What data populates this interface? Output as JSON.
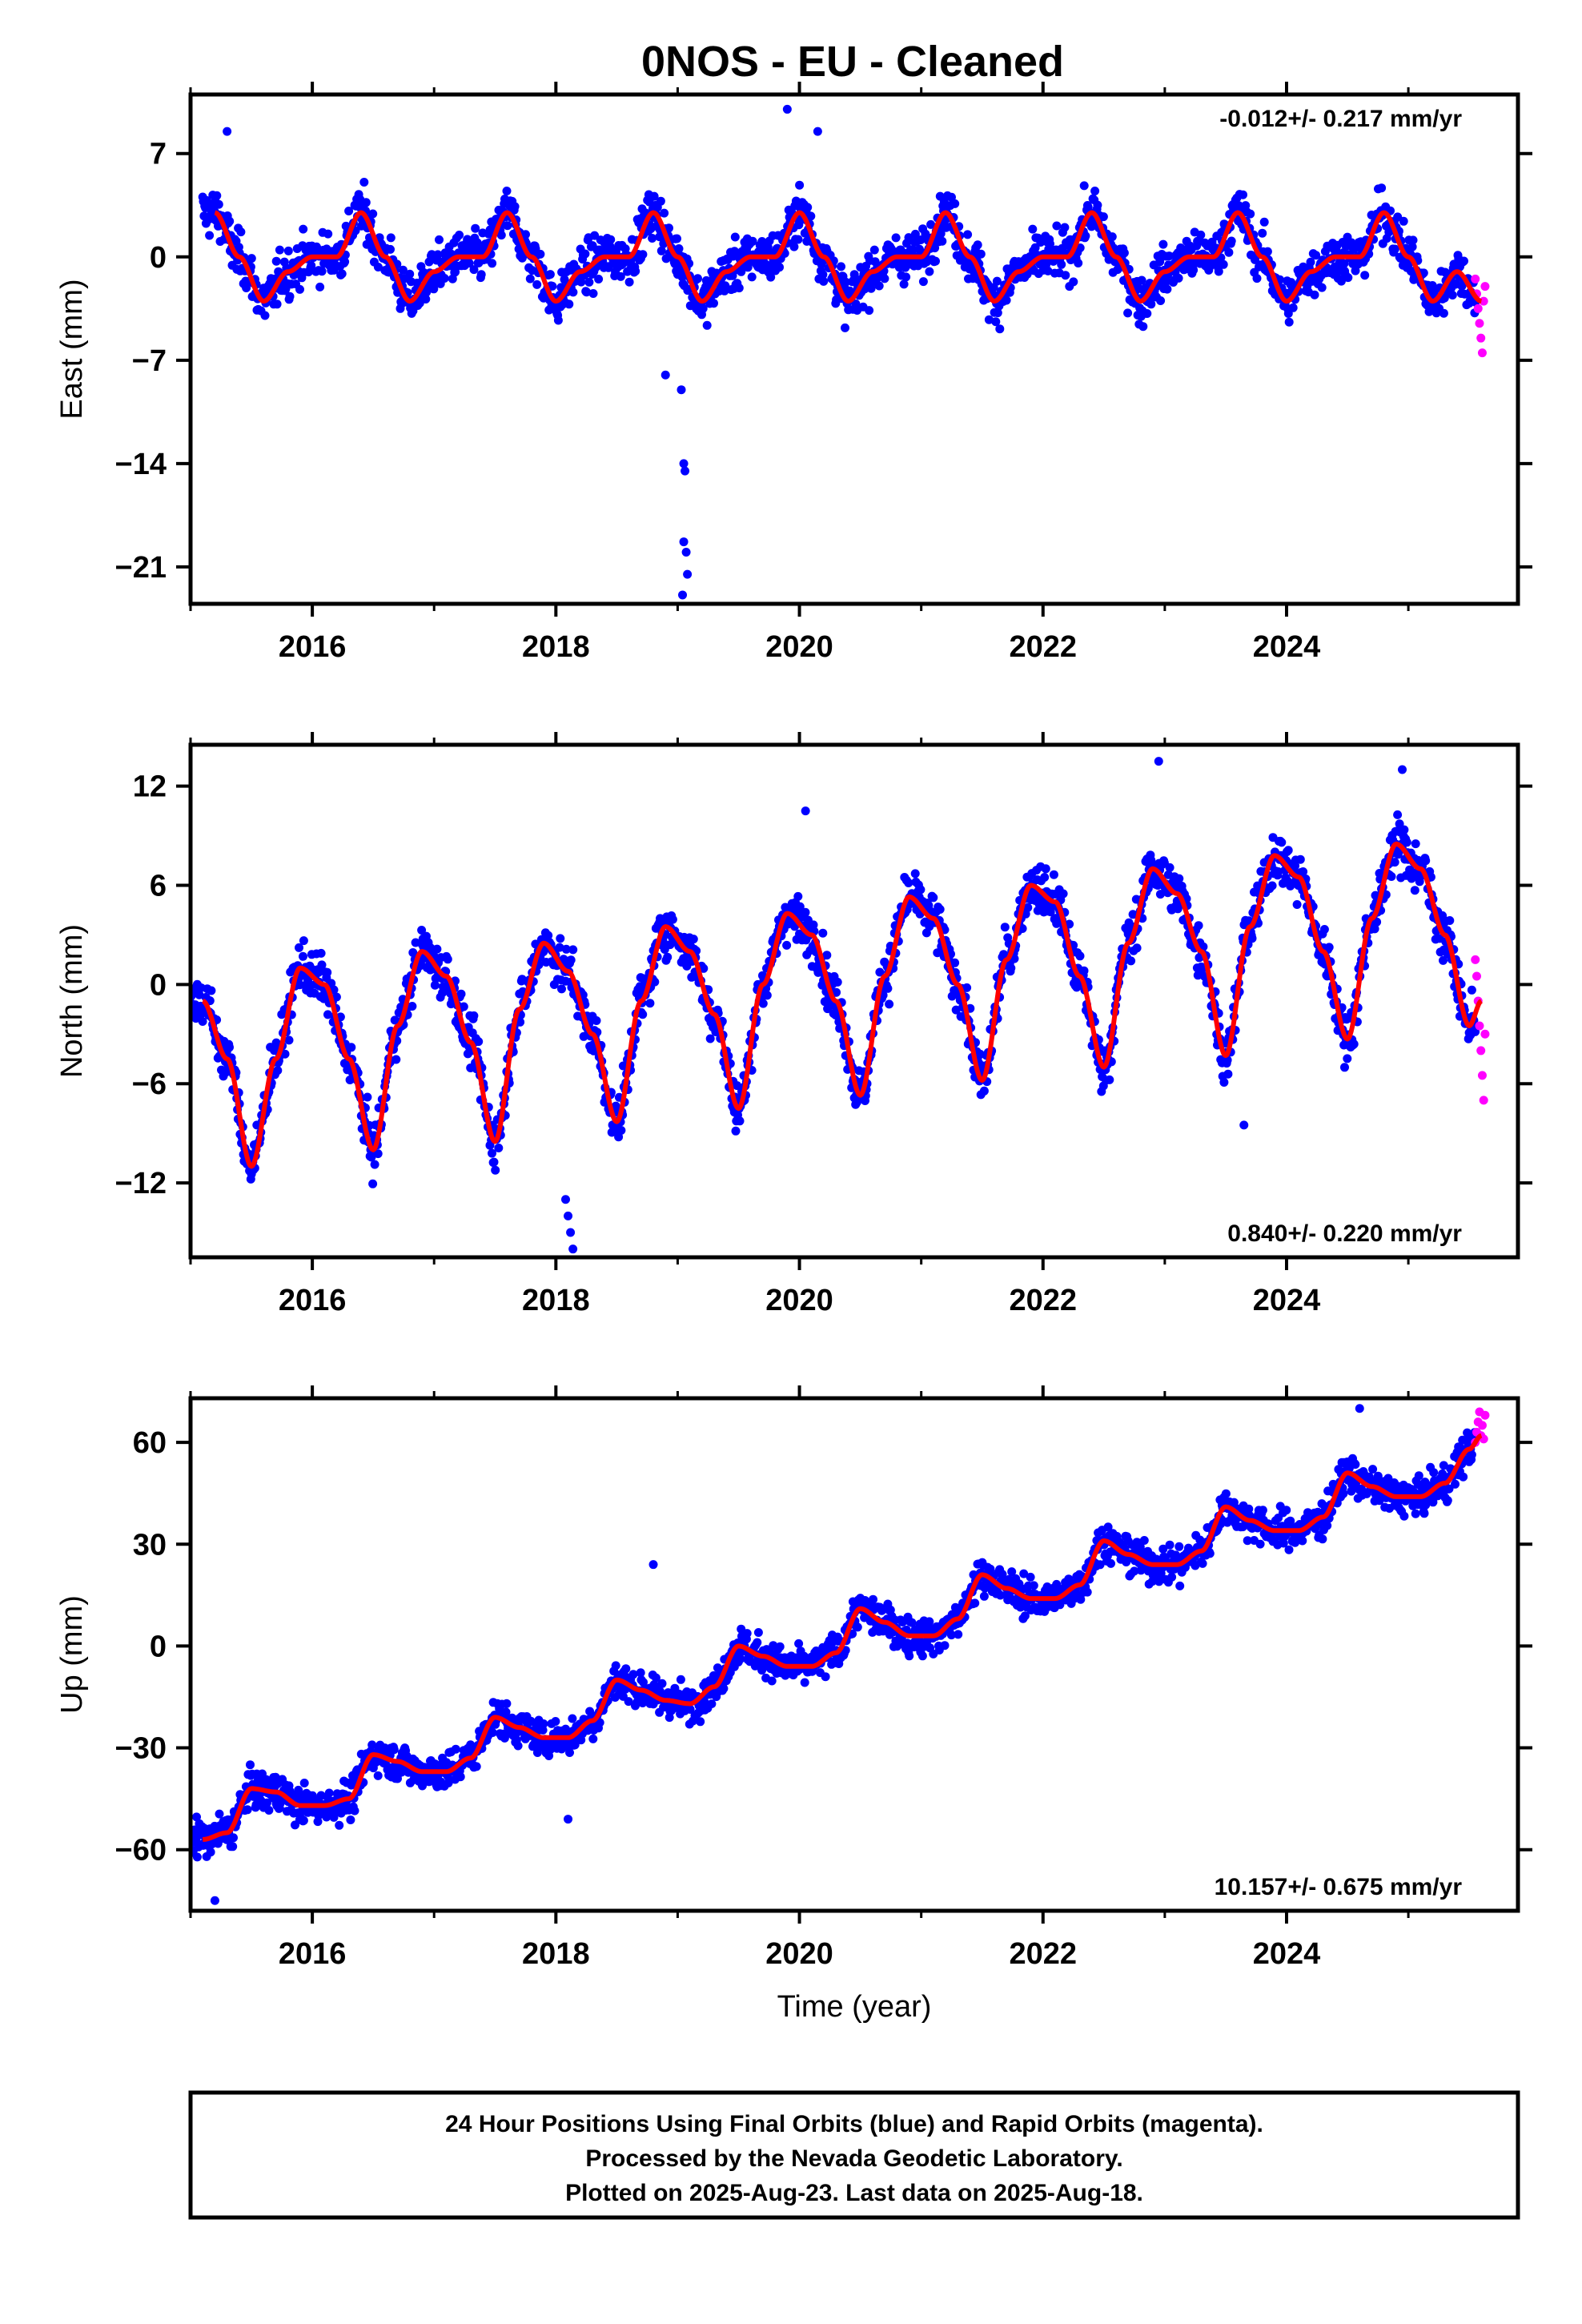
{
  "title": "0NOS  - EU - Cleaned",
  "caption": {
    "lines": [
      "24 Hour Positions Using Final Orbits (blue) and Rapid Orbits (magenta).",
      "Processed by the Nevada Geodetic Laboratory.",
      "Plotted on 2025-Aug-23. Last data on 2025-Aug-18."
    ]
  },
  "colors": {
    "final": "#0000ff",
    "rapid": "#ff00ff",
    "model": "#ff0000"
  },
  "chart_data": [
    {
      "type": "scatter",
      "ylabel": "East (mm)",
      "xlabel": "",
      "rate_label": "-0.012+/- 0.217 mm/yr",
      "rate_position": "top-right",
      "xlim": [
        2015.0,
        2025.9
      ],
      "ylim": [
        -23.5,
        11
      ],
      "xticks": [
        2016,
        2018,
        2020,
        2022,
        2024
      ],
      "xtick_labels": [
        "2016",
        "2018",
        "2020",
        "2022",
        "2024"
      ],
      "yticks": [
        7,
        0,
        -7,
        -14,
        -21
      ],
      "ytick_labels": [
        "7",
        "0",
        "−7",
        "−14",
        "−21"
      ],
      "model": {
        "x": [
          2015.2,
          2015.4,
          2015.6,
          2015.8,
          2016.0,
          2016.2,
          2016.4,
          2016.6,
          2016.8,
          2017.0,
          2017.2,
          2017.4,
          2017.6,
          2017.8,
          2018.0,
          2018.2,
          2018.4,
          2018.6,
          2018.8,
          2019.0,
          2019.2,
          2019.4,
          2019.6,
          2019.8,
          2020.0,
          2020.2,
          2020.4,
          2020.6,
          2020.8,
          2021.0,
          2021.2,
          2021.4,
          2021.6,
          2021.8,
          2022.0,
          2022.2,
          2022.4,
          2022.6,
          2022.8,
          2023.0,
          2023.2,
          2023.4,
          2023.6,
          2023.8,
          2024.0,
          2024.2,
          2024.4,
          2024.6,
          2024.8,
          2025.0,
          2025.2,
          2025.4,
          2025.6
        ],
        "y": [
          3.0,
          0.0,
          -3.0,
          -1.0,
          0.0,
          0.0,
          3.0,
          0.0,
          -3.0,
          -1.0,
          0.0,
          0.0,
          3.0,
          0.0,
          -3.0,
          -1.0,
          0.0,
          0.0,
          3.0,
          0.0,
          -3.0,
          -1.0,
          0.0,
          0.0,
          3.0,
          0.0,
          -3.0,
          -1.0,
          0.0,
          0.0,
          3.0,
          0.0,
          -3.0,
          -1.0,
          0.0,
          0.0,
          3.0,
          0.0,
          -3.0,
          -1.0,
          0.0,
          0.0,
          3.0,
          0.0,
          -3.0,
          -1.0,
          0.0,
          0.0,
          3.0,
          0.0,
          -3.0,
          -1.0,
          -3.0
        ]
      },
      "rapid": {
        "x_start": 2025.55,
        "x_end": 2025.63,
        "y": [
          -1.5,
          -2.5,
          -3.5,
          -4.5,
          -5.5,
          -6.5,
          -3.0,
          -2.0
        ]
      },
      "outliers": {
        "x": [
          2019.05,
          2019.06,
          2019.07,
          2019.08,
          2019.04,
          2019.03,
          2019.05,
          2018.9,
          2019.9,
          2020.15,
          2015.3
        ],
        "y": [
          -14.0,
          -14.5,
          -20.0,
          -21.5,
          -22.9,
          -9.0,
          -19.3,
          -8.0,
          10.0,
          8.5,
          8.5
        ]
      },
      "noise": 1.5,
      "sampling_years": 0.0055
    },
    {
      "type": "scatter",
      "ylabel": "North (mm)",
      "xlabel": "",
      "rate_label": "0.840+/- 0.220 mm/yr",
      "rate_position": "bottom-right",
      "xlim": [
        2015.0,
        2025.9
      ],
      "ylim": [
        -16.5,
        14.5
      ],
      "xticks": [
        2016,
        2018,
        2020,
        2022,
        2024
      ],
      "xtick_labels": [
        "2016",
        "2018",
        "2020",
        "2022",
        "2024"
      ],
      "yticks": [
        12,
        6,
        0,
        -6,
        -12
      ],
      "ytick_labels": [
        "12",
        "6",
        "0",
        "−6",
        "−12"
      ],
      "model": {
        "x": [
          2015.1,
          2015.3,
          2015.5,
          2015.7,
          2015.9,
          2016.1,
          2016.3,
          2016.5,
          2016.7,
          2016.9,
          2017.1,
          2017.3,
          2017.5,
          2017.7,
          2017.9,
          2018.1,
          2018.3,
          2018.5,
          2018.7,
          2018.9,
          2019.1,
          2019.3,
          2019.5,
          2019.7,
          2019.9,
          2020.1,
          2020.3,
          2020.5,
          2020.7,
          2020.9,
          2021.1,
          2021.3,
          2021.5,
          2021.7,
          2021.9,
          2022.1,
          2022.3,
          2022.5,
          2022.7,
          2022.9,
          2023.1,
          2023.3,
          2023.5,
          2023.7,
          2023.9,
          2024.1,
          2024.3,
          2024.5,
          2024.7,
          2024.9,
          2025.1,
          2025.3,
          2025.5,
          2025.6
        ],
        "y": [
          -1.0,
          -4.5,
          -11.0,
          -4.5,
          1.0,
          0.0,
          -4.5,
          -10.0,
          -2.5,
          2.0,
          0.5,
          -3.5,
          -9.5,
          -1.5,
          2.5,
          0.8,
          -3.0,
          -8.3,
          -1.0,
          3.5,
          2.0,
          -1.8,
          -7.5,
          0.0,
          4.3,
          3.0,
          -1.0,
          -6.7,
          0.5,
          5.3,
          4.0,
          0.0,
          -5.8,
          1.5,
          6.0,
          5.0,
          0.5,
          -5.0,
          2.5,
          7.0,
          5.5,
          2.0,
          -4.3,
          3.5,
          7.8,
          6.5,
          2.0,
          -3.3,
          4.0,
          8.5,
          7.0,
          3.0,
          -2.5,
          -1.0
        ]
      },
      "rapid": {
        "x_start": 2025.55,
        "x_end": 2025.63,
        "y": [
          1.5,
          0.5,
          -1.0,
          -2.5,
          -4.0,
          -5.5,
          -7.0,
          -3.0
        ]
      },
      "outliers": {
        "x": [
          2018.1,
          2018.12,
          2018.14,
          2018.08,
          2020.05,
          2022.95,
          2024.95,
          2023.65
        ],
        "y": [
          -14.0,
          -15.0,
          -16.0,
          -13.0,
          10.5,
          13.5,
          13.0,
          -8.5
        ]
      },
      "noise": 1.4,
      "sampling_years": 0.0055
    },
    {
      "type": "scatter",
      "ylabel": "Up (mm)",
      "xlabel": "Time (year)",
      "rate_label": "10.157+/- 0.675 mm/yr",
      "rate_position": "bottom-right",
      "xlim": [
        2015.0,
        2025.9
      ],
      "ylim": [
        -78,
        73
      ],
      "xticks": [
        2016,
        2018,
        2020,
        2022,
        2024
      ],
      "xtick_labels": [
        "2016",
        "2018",
        "2020",
        "2022",
        "2024"
      ],
      "yticks": [
        60,
        30,
        0,
        -30,
        -60
      ],
      "ytick_labels": [
        "60",
        "30",
        "0",
        "−30",
        "−60"
      ],
      "model": {
        "x": [
          2015.1,
          2015.3,
          2015.5,
          2015.7,
          2015.9,
          2016.1,
          2016.3,
          2016.5,
          2016.7,
          2016.9,
          2017.1,
          2017.3,
          2017.5,
          2017.7,
          2017.9,
          2018.1,
          2018.3,
          2018.5,
          2018.7,
          2018.9,
          2019.1,
          2019.3,
          2019.5,
          2019.7,
          2019.9,
          2020.1,
          2020.3,
          2020.5,
          2020.7,
          2020.9,
          2021.1,
          2021.3,
          2021.5,
          2021.7,
          2021.9,
          2022.1,
          2022.3,
          2022.5,
          2022.7,
          2022.9,
          2023.1,
          2023.3,
          2023.5,
          2023.7,
          2023.9,
          2024.1,
          2024.3,
          2024.5,
          2024.7,
          2024.9,
          2025.1,
          2025.3,
          2025.5,
          2025.6
        ],
        "y": [
          -57.0,
          -55.0,
          -42.0,
          -43.0,
          -47.0,
          -47.0,
          -45.0,
          -32.0,
          -34.0,
          -37.0,
          -37.0,
          -33.0,
          -21.0,
          -24.0,
          -27.0,
          -27.0,
          -22.0,
          -10.0,
          -13.0,
          -16.0,
          -17.0,
          -12.0,
          0.0,
          -3.0,
          -6.0,
          -6.0,
          -2.0,
          11.0,
          7.0,
          3.0,
          3.0,
          8.0,
          21.0,
          17.0,
          14.0,
          14.0,
          18.0,
          31.0,
          27.0,
          24.0,
          24.0,
          28.0,
          41.0,
          37.0,
          34.0,
          34.0,
          38.0,
          51.0,
          47.0,
          44.0,
          44.0,
          48.0,
          58.0,
          62.0
        ]
      },
      "rapid": {
        "x_start": 2025.55,
        "x_end": 2025.63,
        "y": [
          60.0,
          63.0,
          66.0,
          69.0,
          62.0,
          65.0,
          61.0,
          68.0
        ]
      },
      "outliers": {
        "x": [
          2018.8,
          2024.6,
          2015.2,
          2018.1
        ],
        "y": [
          24.0,
          70.0,
          -75.0,
          -51.0
        ]
      },
      "noise": 5.0,
      "sampling_years": 0.0055
    }
  ]
}
